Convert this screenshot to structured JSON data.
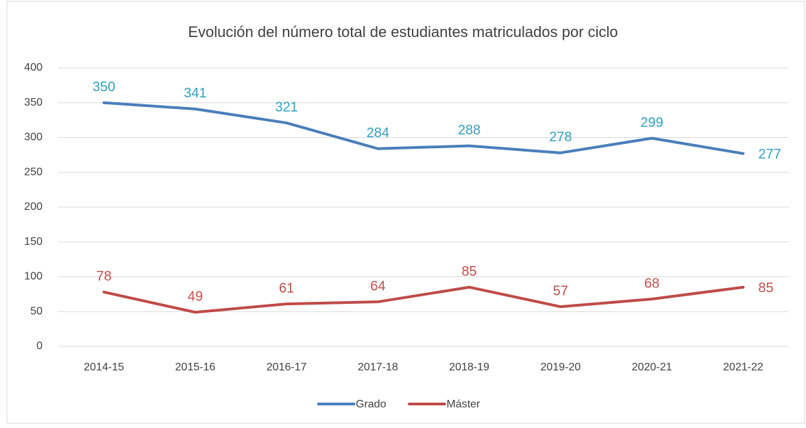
{
  "chart_data": {
    "type": "line",
    "title": "Evolución del número total de estudiantes matriculados por ciclo",
    "categories": [
      "2014-15",
      "2015-16",
      "2016-17",
      "2017-18",
      "2018-19",
      "2019-20",
      "2020-21",
      "2021-22"
    ],
    "series": [
      {
        "name": "Grado",
        "color": "#4a7ebb",
        "label_color": "#31a0c0",
        "values": [
          350,
          341,
          321,
          284,
          288,
          278,
          299,
          277
        ]
      },
      {
        "name": "Máster",
        "color": "#be4b48",
        "label_color": "#c0504d",
        "values": [
          78,
          49,
          61,
          64,
          85,
          57,
          68,
          85
        ]
      }
    ],
    "ylim": [
      0,
      400
    ],
    "yticks": [
      0,
      50,
      100,
      150,
      200,
      250,
      300,
      350,
      400
    ],
    "grid": true,
    "legend": "bottom"
  }
}
